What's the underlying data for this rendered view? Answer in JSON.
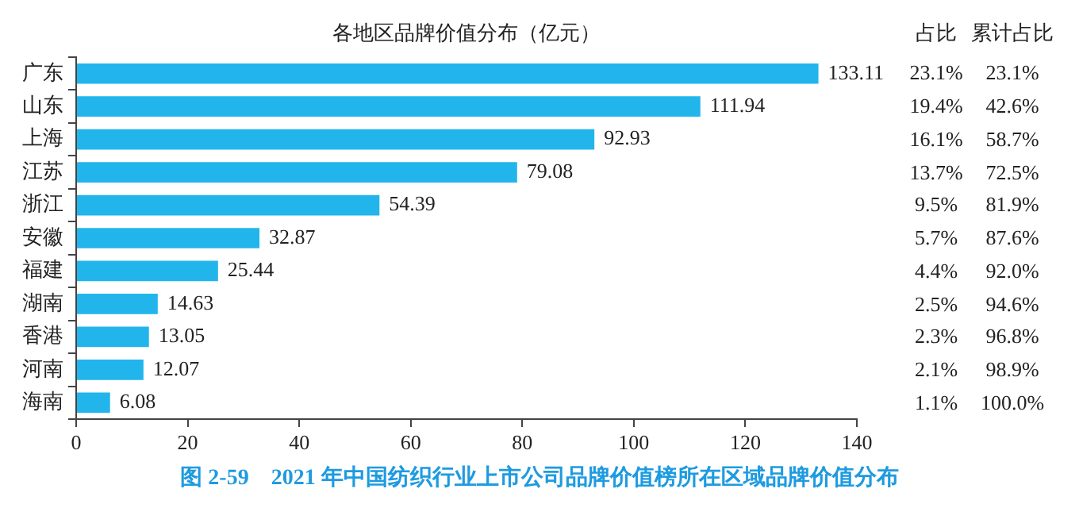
{
  "chart_data": {
    "type": "bar",
    "orientation": "horizontal",
    "title": "各地区品牌价值分布（亿元）",
    "categories": [
      "广东",
      "山东",
      "上海",
      "江苏",
      "浙江",
      "安徽",
      "福建",
      "湖南",
      "香港",
      "河南",
      "海南"
    ],
    "values": [
      133.11,
      111.94,
      92.93,
      79.08,
      54.39,
      32.87,
      25.44,
      14.63,
      13.05,
      12.07,
      6.08
    ],
    "color": "#22b5ec",
    "data_labels": true,
    "grid": false,
    "legend": false,
    "xlim": [
      0,
      140
    ],
    "xticks": [
      0,
      20,
      40,
      60,
      80,
      100,
      120,
      140
    ],
    "annotations": [
      "图 2-59　2021 年中国纺织行业上市公司品牌价值榜所在区域品牌价值分布",
      "占比",
      "累计占比",
      "23.1%",
      "19.4%",
      "16.1%",
      "13.7%",
      "9.5%",
      "5.7%",
      "4.4%",
      "2.5%",
      "2.3%",
      "2.1%",
      "1.1%",
      "23.1%",
      "42.6%",
      "58.7%",
      "72.5%",
      "81.9%",
      "87.6%",
      "92.0%",
      "94.6%",
      "96.8%",
      "98.9%",
      "100.0%"
    ]
  }
}
